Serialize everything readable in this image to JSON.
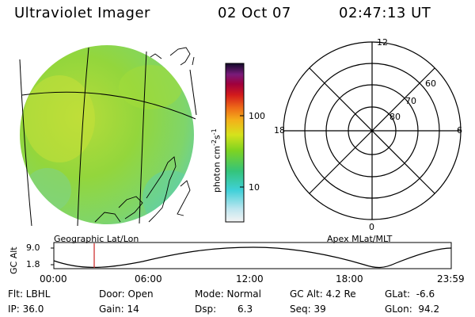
{
  "header": {
    "title": "Ultraviolet Imager",
    "date": "02 Oct 07",
    "time": "02:47:13 UT"
  },
  "colorbar": {
    "unit_label": "photon cm",
    "unit_sup1": "-2",
    "unit_mid": "s",
    "unit_sup2": "-1",
    "tick_high": "100",
    "tick_low": "10"
  },
  "left_panel": {
    "caption": "Geographic Lat/Lon"
  },
  "polar_plot": {
    "caption": "Apex MLat/MLT",
    "mlt_labels": {
      "top": "12",
      "left": "18",
      "right": "6",
      "bottom": "0"
    },
    "lat_labels": [
      "60",
      "70",
      "80"
    ]
  },
  "altitude_plot": {
    "y_label": "GC Alt",
    "y_ticks": [
      "9.0",
      "1.8"
    ],
    "x_ticks": [
      "00:00",
      "06:00",
      "12:00",
      "18:00",
      "23:59"
    ]
  },
  "footer": {
    "row1": {
      "filter": "Flt: LBHL",
      "door": "Door: Open",
      "mode": "Mode: Normal",
      "gc_alt": "GC Alt: 4.2 Re",
      "glat": "GLat:  -6.6"
    },
    "row2": {
      "ip": "IP: 36.0",
      "gain": "Gain: 14",
      "dsp_label": "Dsp:",
      "dsp_value": "6.3",
      "seq": "Seq: 39",
      "glon": "GLon:  94.2"
    }
  },
  "colors": {
    "disk_base": "#8fd63a",
    "disk_edge": "#6fd7a0",
    "disk_warm": "#c9e23a",
    "cursor": "#cc2222"
  }
}
